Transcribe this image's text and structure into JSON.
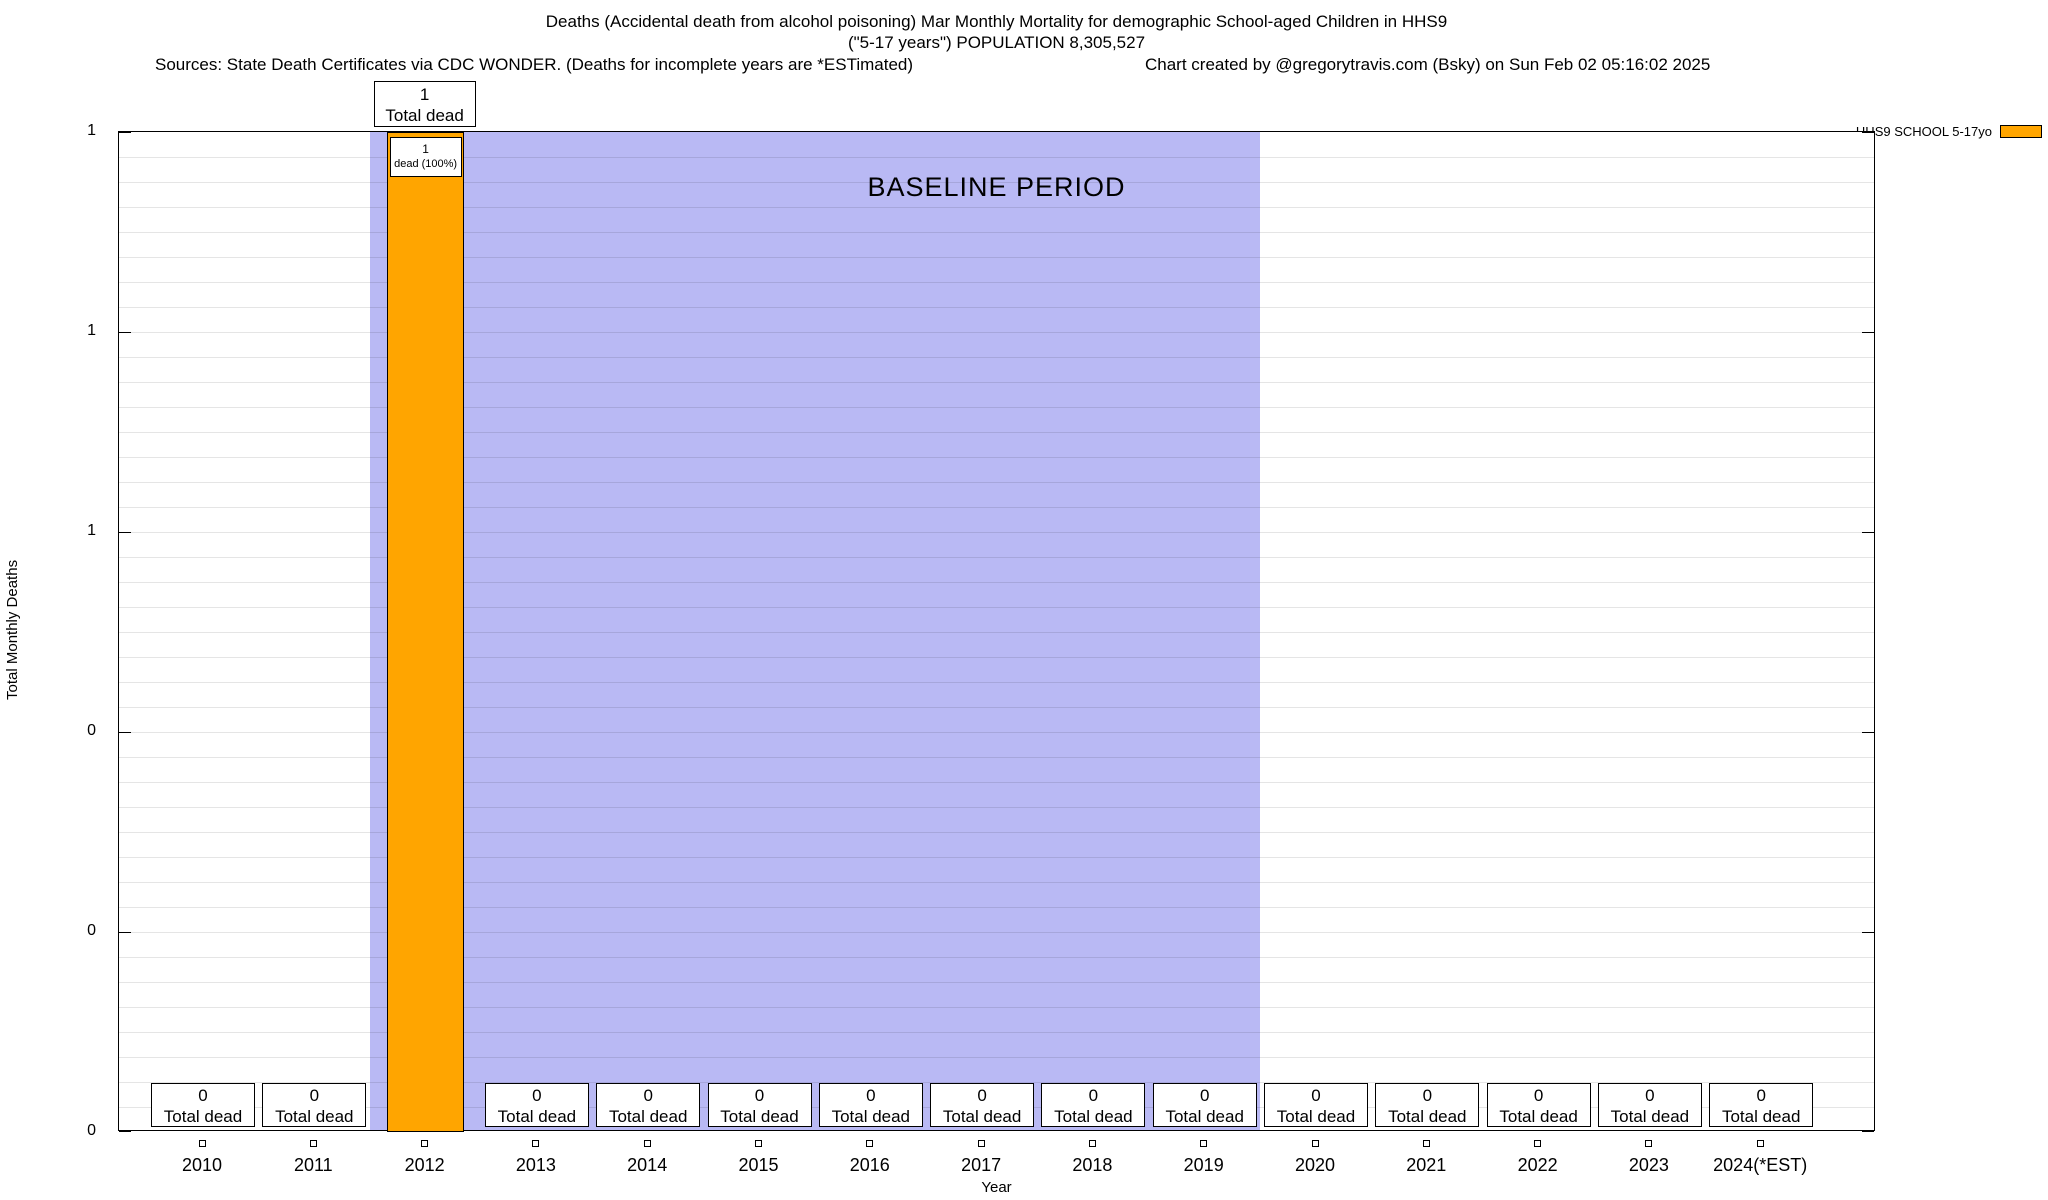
{
  "chart_data": {
    "type": "bar",
    "title": "Deaths (Accidental death from alcohol poisoning) Mar Monthly Mortality for demographic School-aged Children in HHS9",
    "subtitle": "(\"5-17 years\") POPULATION 8,305,527",
    "source_note": "Sources: State Death Certificates via CDC WONDER. (Deaths for incomplete years are *ESTimated)",
    "credit_note": "Chart created by @gregorytravis.com (Bsky) on Sun Feb 02 05:16:02 2025",
    "xlabel": "Year",
    "ylabel": "Total Monthly Deaths",
    "ylim": [
      0,
      1
    ],
    "grid": {
      "horizontal": true,
      "minor_intervals": 40
    },
    "yticks": [
      {
        "value": 0,
        "label": "0"
      },
      {
        "value": 0.2,
        "label": "0"
      },
      {
        "value": 0.4,
        "label": "0"
      },
      {
        "value": 0.6,
        "label": "1"
      },
      {
        "value": 0.8,
        "label": "1"
      },
      {
        "value": 1,
        "label": "1"
      }
    ],
    "categories": [
      "2010",
      "2011",
      "2012",
      "2013",
      "2014",
      "2015",
      "2016",
      "2017",
      "2018",
      "2019",
      "2020",
      "2021",
      "2022",
      "2023",
      "2024(*EST)"
    ],
    "series": [
      {
        "name": "HHS9 SCHOOL 5-17yo",
        "color": "#FFA500",
        "values": [
          0,
          0,
          1,
          0,
          0,
          0,
          0,
          0,
          0,
          0,
          0,
          0,
          0,
          0,
          0
        ]
      }
    ],
    "bar_annotations": [
      {
        "category": "2010",
        "value_label": "0",
        "caption": "Total dead",
        "placement": "bottom"
      },
      {
        "category": "2011",
        "value_label": "0",
        "caption": "Total dead",
        "placement": "bottom"
      },
      {
        "category": "2012",
        "value_label": "1",
        "caption": "Total dead",
        "placement": "above-bar",
        "inner_label": "1",
        "inner_caption": "dead (100%)"
      },
      {
        "category": "2013",
        "value_label": "0",
        "caption": "Total dead",
        "placement": "bottom"
      },
      {
        "category": "2014",
        "value_label": "0",
        "caption": "Total dead",
        "placement": "bottom"
      },
      {
        "category": "2015",
        "value_label": "0",
        "caption": "Total dead",
        "placement": "bottom"
      },
      {
        "category": "2016",
        "value_label": "0",
        "caption": "Total dead",
        "placement": "bottom"
      },
      {
        "category": "2017",
        "value_label": "0",
        "caption": "Total dead",
        "placement": "bottom"
      },
      {
        "category": "2018",
        "value_label": "0",
        "caption": "Total dead",
        "placement": "bottom"
      },
      {
        "category": "2019",
        "value_label": "0",
        "caption": "Total dead",
        "placement": "bottom"
      },
      {
        "category": "2020",
        "value_label": "0",
        "caption": "Total dead",
        "placement": "bottom"
      },
      {
        "category": "2021",
        "value_label": "0",
        "caption": "Total dead",
        "placement": "bottom"
      },
      {
        "category": "2022",
        "value_label": "0",
        "caption": "Total dead",
        "placement": "bottom"
      },
      {
        "category": "2023",
        "value_label": "0",
        "caption": "Total dead",
        "placement": "bottom"
      },
      {
        "category": "2024(*EST)",
        "value_label": "0",
        "caption": "Total dead",
        "placement": "bottom"
      }
    ],
    "baseline_band": {
      "label": "BASELINE PERIOD",
      "from_category": "2012",
      "to_category": "2019",
      "start_index": 1.5,
      "end_index": 9.5,
      "color": "#b9b9f4"
    },
    "legend": {
      "label": "HHS9 SCHOOL 5-17yo",
      "color": "#FFA500",
      "position": "top-right-outside"
    }
  }
}
